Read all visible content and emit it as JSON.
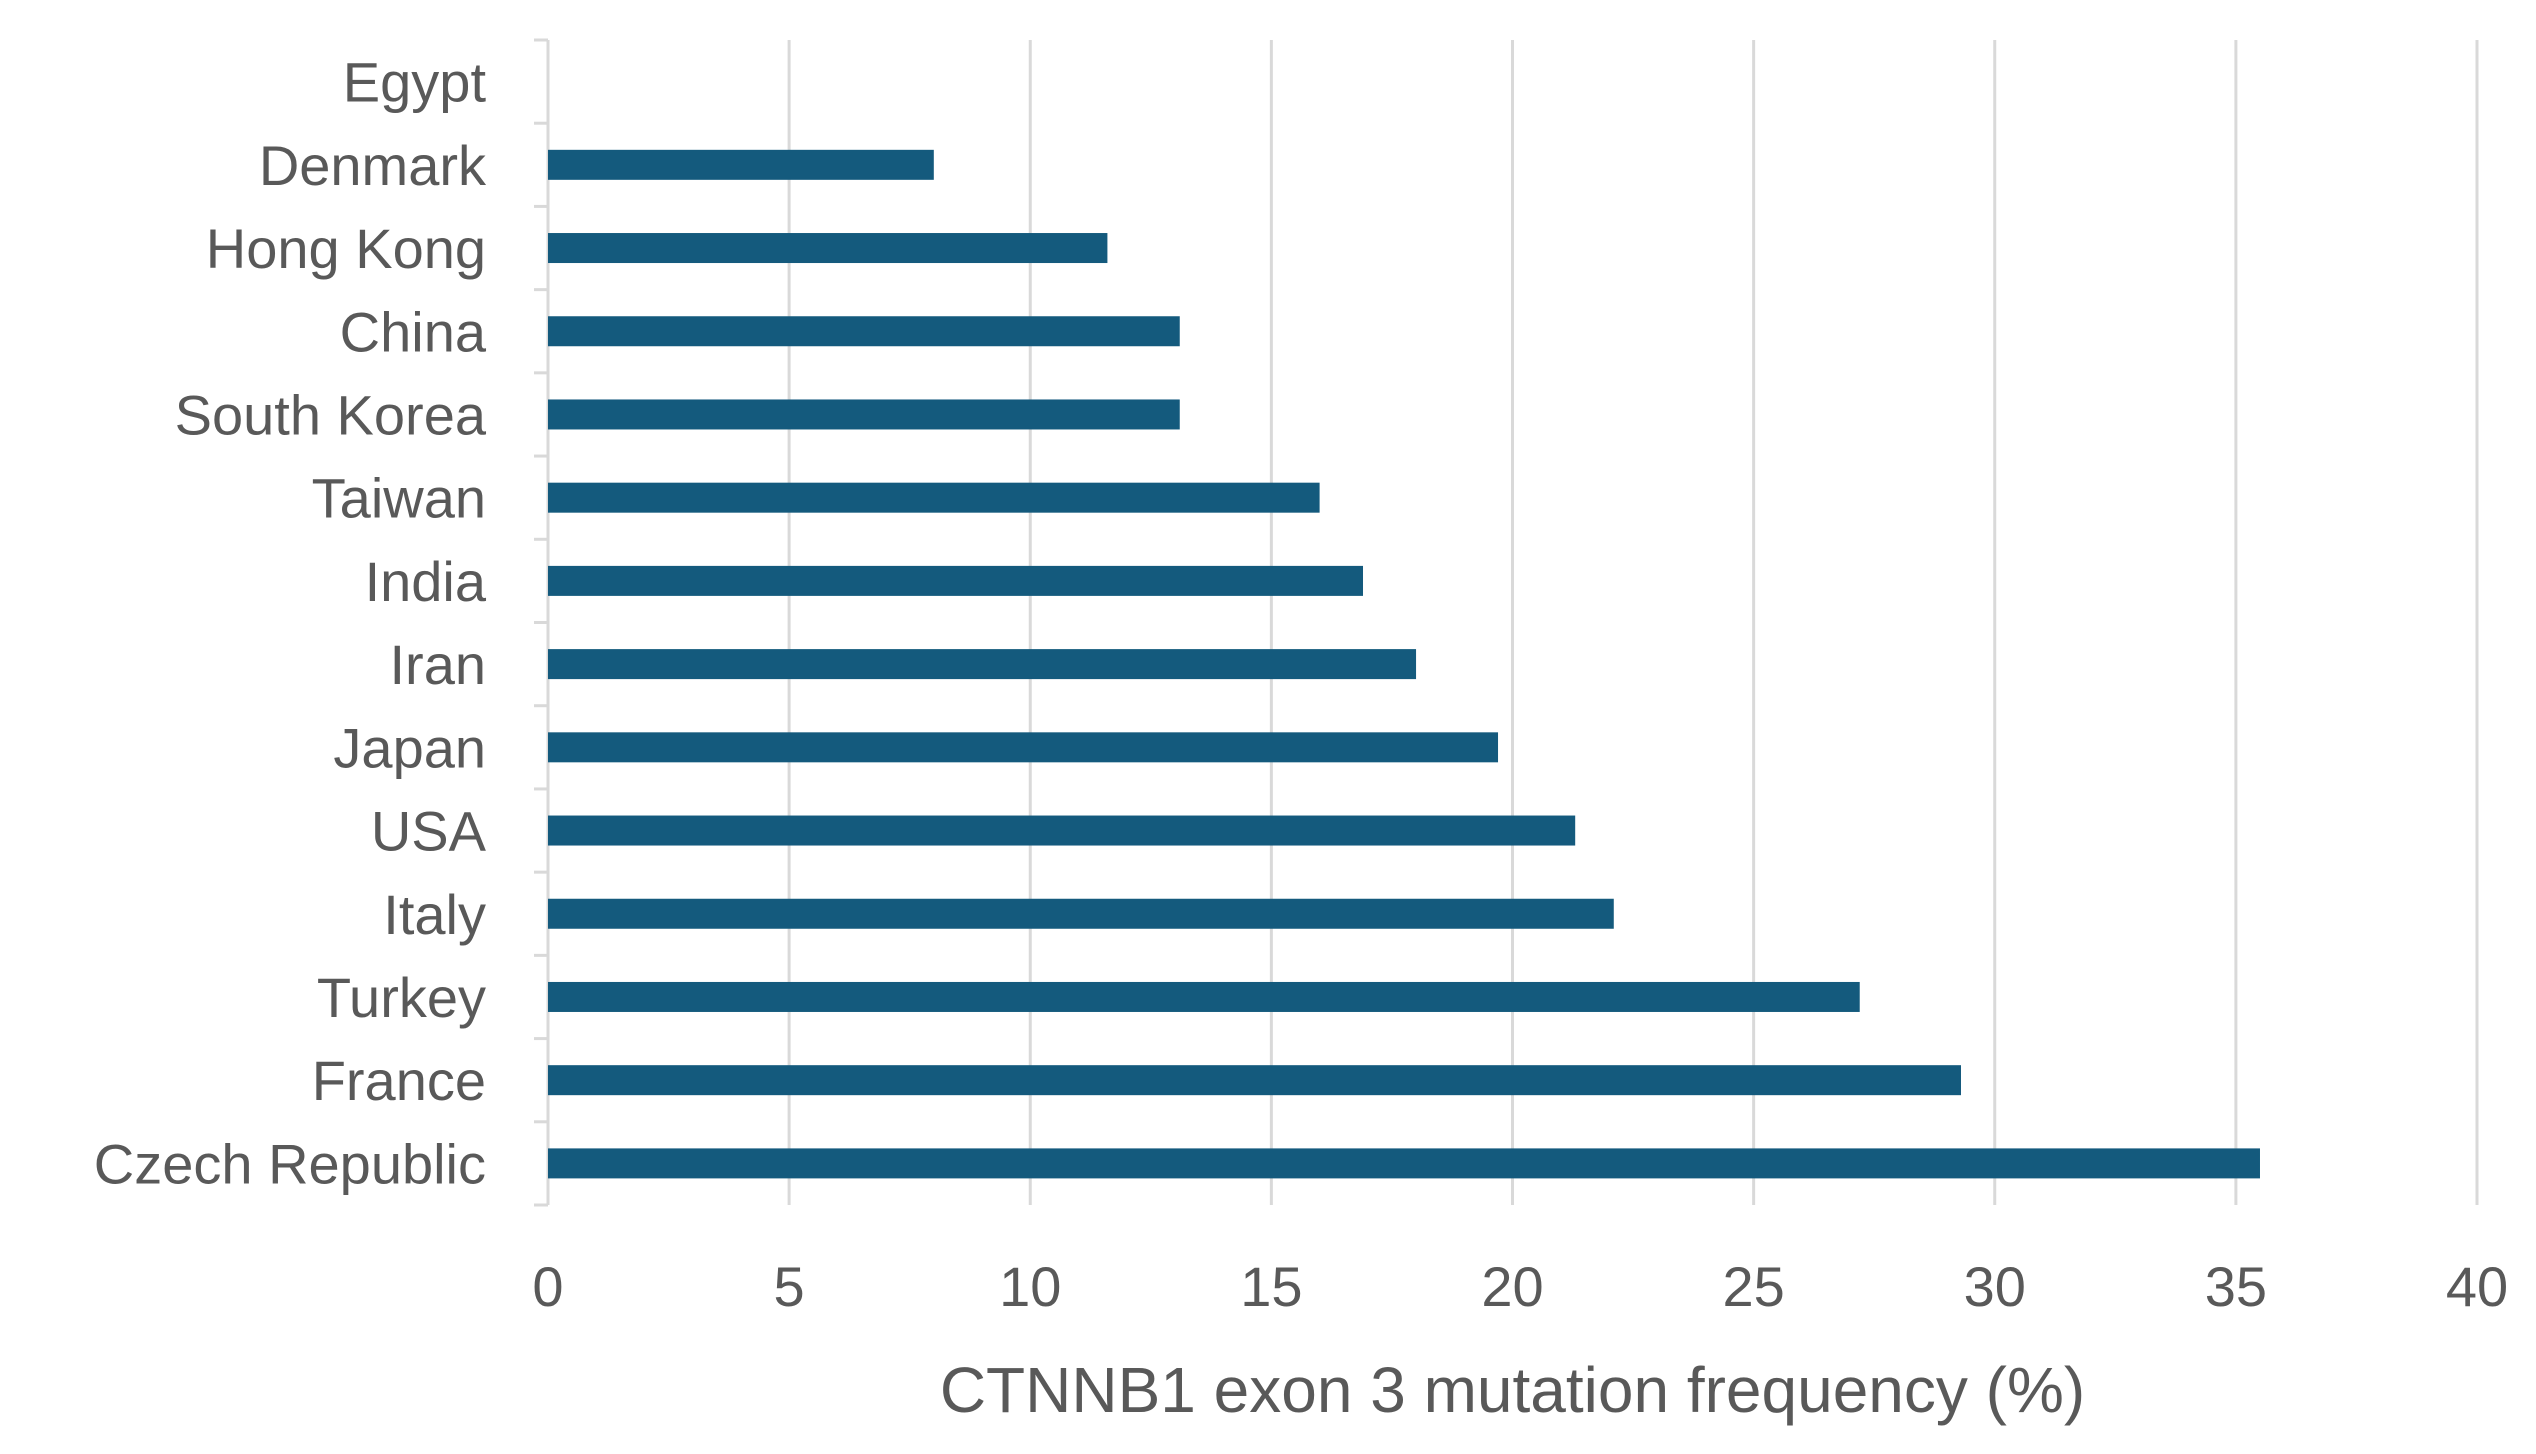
{
  "chart_data": {
    "type": "bar",
    "orientation": "horizontal",
    "categories": [
      "Egypt",
      "Denmark",
      "Hong Kong",
      "China",
      "South Korea",
      "Taiwan",
      "India",
      "Iran",
      "Japan",
      "USA",
      "Italy",
      "Turkey",
      "France",
      "Czech Republic"
    ],
    "values": [
      0,
      8.0,
      11.6,
      13.1,
      13.1,
      16.0,
      16.9,
      18.0,
      19.7,
      21.3,
      22.1,
      27.2,
      29.3,
      35.5
    ],
    "xlabel": "CTNNB1 exon 3 mutation frequency (%)",
    "ylabel": "",
    "xlim": [
      0,
      40
    ],
    "xticks": [
      "0",
      "5",
      "10",
      "15",
      "20",
      "25",
      "30",
      "35",
      "40"
    ],
    "grid": "vertical",
    "bar_color": "#145A7D",
    "grid_color": "#D9D9D9",
    "axis_color": "#D9D9D9",
    "text_color": "#595959"
  }
}
